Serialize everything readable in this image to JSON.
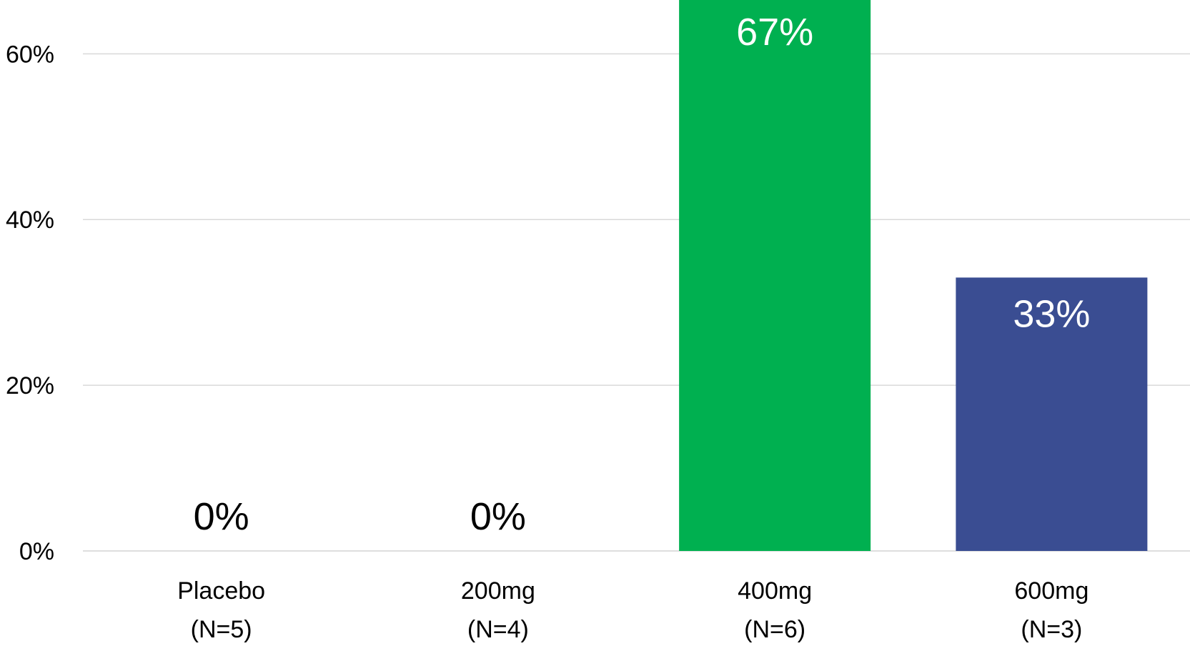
{
  "chart_data": {
    "type": "bar",
    "title": "",
    "xlabel": "",
    "ylabel": "",
    "categories": [
      [
        "Placebo",
        "(N=5)"
      ],
      [
        "200mg",
        "(N=4)"
      ],
      [
        "400mg",
        "(N=6)"
      ],
      [
        "600mg",
        "(N=3)"
      ]
    ],
    "values": [
      0,
      0,
      67,
      33
    ],
    "value_labels": [
      "0%",
      "0%",
      "67%",
      "33%"
    ],
    "bar_colors": [
      "#ffffff",
      "#ffffff",
      "#00b050",
      "#3a4d92"
    ],
    "label_colors": [
      "#000000",
      "#000000",
      "#ffffff",
      "#ffffff"
    ],
    "ylim": [
      0,
      66.5
    ],
    "yticks": [
      0,
      20,
      40,
      60
    ],
    "ytick_labels": [
      "0%",
      "20%",
      "40%",
      "60%"
    ],
    "grid": true,
    "grid_color": "#d9d9d9",
    "legend": "none"
  }
}
